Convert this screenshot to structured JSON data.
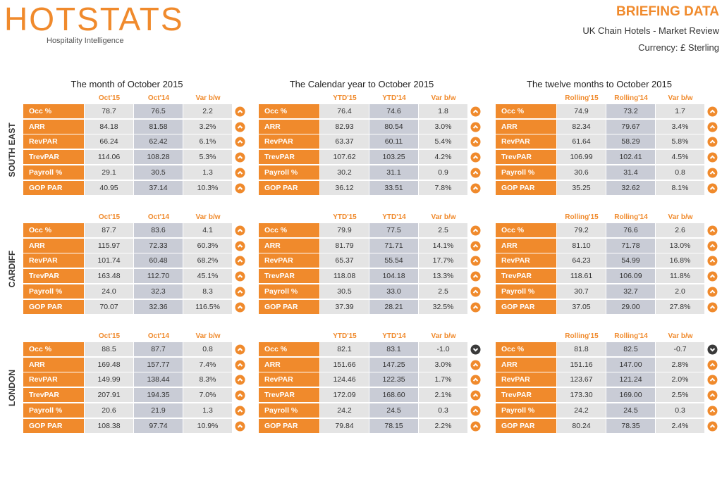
{
  "header": {
    "logo": "HOTSTATS",
    "tagline": "Hospitality Intelligence",
    "title": "BRIEFING DATA",
    "subtitle": "UK Chain Hotels - Market Review",
    "currency": "Currency: £ Sterling"
  },
  "periods": [
    "The month of October 2015",
    "The Calendar year to October 2015",
    "The twelve months to October 2015"
  ],
  "columns": [
    [
      "Oct'15",
      "Oct'14",
      "Var b/w"
    ],
    [
      "YTD'15",
      "YTD'14",
      "Var b/w"
    ],
    [
      "Rolling'15",
      "Rolling'14",
      "Var b/w"
    ]
  ],
  "row_labels": [
    "Occ %",
    "ARR",
    "RevPAR",
    "TrevPAR",
    "Payroll %",
    "GOP PAR"
  ],
  "regions": [
    {
      "name": "SOUTH EAST",
      "blocks": [
        {
          "rows": [
            [
              "78.7",
              "76.5",
              "2.2"
            ],
            [
              "84.18",
              "81.58",
              "3.2%"
            ],
            [
              "66.24",
              "62.42",
              "6.1%"
            ],
            [
              "114.06",
              "108.28",
              "5.3%"
            ],
            [
              "29.1",
              "30.5",
              "1.3"
            ],
            [
              "40.95",
              "37.14",
              "10.3%"
            ]
          ]
        },
        {
          "rows": [
            [
              "76.4",
              "74.6",
              "1.8"
            ],
            [
              "82.93",
              "80.54",
              "3.0%"
            ],
            [
              "63.37",
              "60.11",
              "5.4%"
            ],
            [
              "107.62",
              "103.25",
              "4.2%"
            ],
            [
              "30.2",
              "31.1",
              "0.9"
            ],
            [
              "36.12",
              "33.51",
              "7.8%"
            ]
          ]
        },
        {
          "rows": [
            [
              "74.9",
              "73.2",
              "1.7"
            ],
            [
              "82.34",
              "79.67",
              "3.4%"
            ],
            [
              "61.64",
              "58.29",
              "5.8%"
            ],
            [
              "106.99",
              "102.41",
              "4.5%"
            ],
            [
              "30.6",
              "31.4",
              "0.8"
            ],
            [
              "35.25",
              "32.62",
              "8.1%"
            ]
          ]
        }
      ]
    },
    {
      "name": "CARDIFF",
      "blocks": [
        {
          "rows": [
            [
              "87.7",
              "83.6",
              "4.1"
            ],
            [
              "115.97",
              "72.33",
              "60.3%"
            ],
            [
              "101.74",
              "60.48",
              "68.2%"
            ],
            [
              "163.48",
              "112.70",
              "45.1%"
            ],
            [
              "24.0",
              "32.3",
              "8.3"
            ],
            [
              "70.07",
              "32.36",
              "116.5%"
            ]
          ]
        },
        {
          "rows": [
            [
              "79.9",
              "77.5",
              "2.5"
            ],
            [
              "81.79",
              "71.71",
              "14.1%"
            ],
            [
              "65.37",
              "55.54",
              "17.7%"
            ],
            [
              "118.08",
              "104.18",
              "13.3%"
            ],
            [
              "30.5",
              "33.0",
              "2.5"
            ],
            [
              "37.39",
              "28.21",
              "32.5%"
            ]
          ]
        },
        {
          "rows": [
            [
              "79.2",
              "76.6",
              "2.6"
            ],
            [
              "81.10",
              "71.78",
              "13.0%"
            ],
            [
              "64.23",
              "54.99",
              "16.8%"
            ],
            [
              "118.61",
              "106.09",
              "11.8%"
            ],
            [
              "30.7",
              "32.7",
              "2.0"
            ],
            [
              "37.05",
              "29.00",
              "27.8%"
            ]
          ]
        }
      ]
    },
    {
      "name": "LONDON",
      "blocks": [
        {
          "rows": [
            [
              "88.5",
              "87.7",
              "0.8"
            ],
            [
              "169.48",
              "157.77",
              "7.4%"
            ],
            [
              "149.99",
              "138.44",
              "8.3%"
            ],
            [
              "207.91",
              "194.35",
              "7.0%"
            ],
            [
              "20.6",
              "21.9",
              "1.3"
            ],
            [
              "108.38",
              "97.74",
              "10.9%"
            ]
          ]
        },
        {
          "rows": [
            [
              "82.1",
              "83.1",
              "-1.0"
            ],
            [
              "151.66",
              "147.25",
              "3.0%"
            ],
            [
              "124.46",
              "122.35",
              "1.7%"
            ],
            [
              "172.09",
              "168.60",
              "2.1%"
            ],
            [
              "24.2",
              "24.5",
              "0.3"
            ],
            [
              "79.84",
              "78.15",
              "2.2%"
            ]
          ]
        },
        {
          "rows": [
            [
              "81.8",
              "82.5",
              "-0.7"
            ],
            [
              "151.16",
              "147.00",
              "2.8%"
            ],
            [
              "123.67",
              "121.24",
              "2.0%"
            ],
            [
              "173.30",
              "169.00",
              "2.5%"
            ],
            [
              "24.2",
              "24.5",
              "0.3"
            ],
            [
              "80.24",
              "78.35",
              "2.4%"
            ]
          ]
        }
      ]
    }
  ]
}
